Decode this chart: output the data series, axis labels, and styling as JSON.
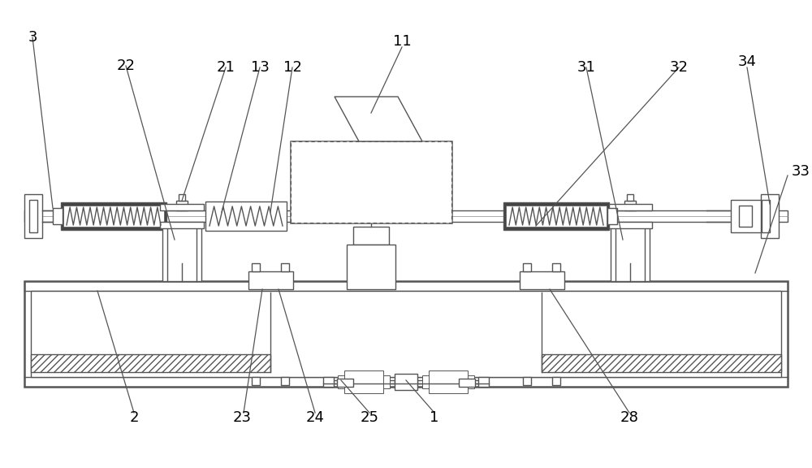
{
  "bg_color": "#ffffff",
  "lc": "#555555",
  "lw": 1.0,
  "tlw": 1.8
}
